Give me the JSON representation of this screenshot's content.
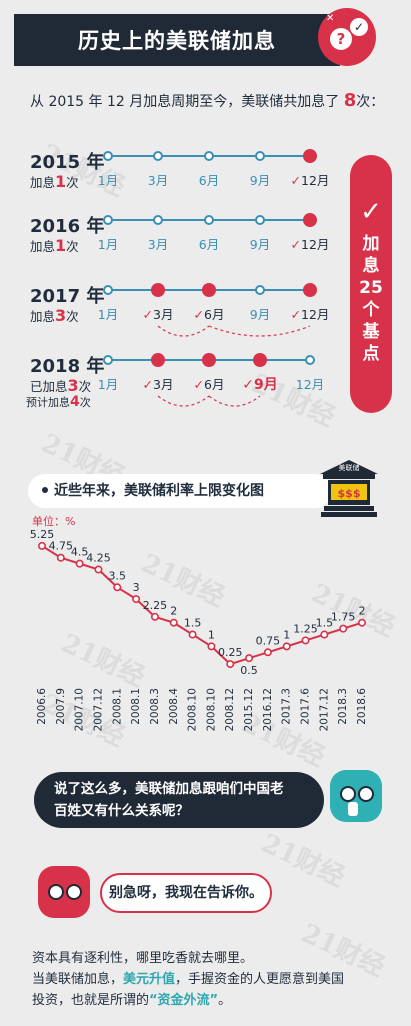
{
  "header": {
    "title": "历史上的美联储加息"
  },
  "intro": {
    "prefix": "从 2015 年 12 月加息周期至今，美联储共加息了",
    "count": "8",
    "suffix": "次："
  },
  "timeline": [
    {
      "year": "2015 年",
      "sub_pre": "加息",
      "sub_num": "1",
      "sub_post": "次",
      "months": [
        {
          "label": "1月",
          "state": "none"
        },
        {
          "label": "3月",
          "state": "none"
        },
        {
          "label": "6月",
          "state": "none"
        },
        {
          "label": "9月",
          "state": "none"
        },
        {
          "label": "12月",
          "state": "hit"
        }
      ]
    },
    {
      "year": "2016 年",
      "sub_pre": "加息",
      "sub_num": "1",
      "sub_post": "次",
      "months": [
        {
          "label": "1月",
          "state": "none"
        },
        {
          "label": "3月",
          "state": "none"
        },
        {
          "label": "6月",
          "state": "none"
        },
        {
          "label": "9月",
          "state": "none"
        },
        {
          "label": "12月",
          "state": "hit"
        }
      ]
    },
    {
      "year": "2017 年",
      "sub_pre": "加息",
      "sub_num": "3",
      "sub_post": "次",
      "months": [
        {
          "label": "1月",
          "state": "none"
        },
        {
          "label": "3月",
          "state": "hit"
        },
        {
          "label": "6月",
          "state": "hit"
        },
        {
          "label": "9月",
          "state": "none"
        },
        {
          "label": "12月",
          "state": "hit"
        }
      ]
    },
    {
      "year": "2018 年",
      "sub_pre": "已加息",
      "sub_num": "3",
      "sub_post": "次",
      "sub2_pre": "预计加息",
      "sub2_num": "4",
      "sub2_post": "次",
      "months": [
        {
          "label": "1月",
          "state": "none"
        },
        {
          "label": "3月",
          "state": "hit"
        },
        {
          "label": "6月",
          "state": "hit"
        },
        {
          "label": "9月",
          "state": "pending"
        },
        {
          "label": "12月",
          "state": "none"
        }
      ]
    }
  ],
  "total_badge": {
    "check": "✓",
    "text": [
      "加",
      "息",
      "25",
      "个",
      "基",
      "点"
    ]
  },
  "chart_heading": "近些年来，美联储利率上限变化图",
  "bank_label": "美联储",
  "bank_money": "$$$",
  "chart_data": {
    "type": "line",
    "title": "近些年来，美联储利率上限变化图",
    "unit_label": "单位：%",
    "categories": [
      "2006.6",
      "2007.9",
      "2007.10",
      "2007.12",
      "2008.1",
      "2008.1",
      "2008.3",
      "2008.4",
      "2008.10",
      "2008.10",
      "2008.12",
      "2015.12",
      "2016.12",
      "2017.3",
      "2017.6",
      "2017.12",
      "2018.3",
      "2018.6"
    ],
    "values": [
      5.25,
      4.75,
      4.5,
      4.25,
      3.5,
      3,
      2.25,
      2,
      1.5,
      1,
      0.25,
      0.5,
      0.75,
      1,
      1.25,
      1.5,
      1.75,
      2
    ],
    "labels": [
      "5.25",
      "4.75",
      "4.5",
      "4.25",
      "3.5",
      "3",
      "2.25",
      "2",
      "1.5",
      "1",
      "0.25",
      "0.5",
      "0.75",
      "1",
      "1.25",
      "1.5",
      "1.75",
      "2"
    ],
    "ylim": [
      0,
      5.5
    ],
    "color": "#d8324a",
    "grid": false
  },
  "dialog": {
    "question": [
      "说了这么多，美联储加息跟咱们中国老",
      "百姓又有什么关系呢？"
    ],
    "answer": "别急呀，我现在告诉你。"
  },
  "paragraph": {
    "line1": "资本具有逐利性，哪里吃香就去哪里。",
    "line2_pre": "当美联储加息，",
    "line2_hl": "美元升值",
    "line2_post": "，手握资金的人更愿意到美国",
    "line3_pre": "投资，也就是所谓的",
    "line3_hl": "“资金外流”",
    "line3_post": "。"
  },
  "watermark": "21财经",
  "colors": {
    "accent": "#d8324a",
    "dark": "#1f2a36",
    "teal": "#2fb0b4",
    "line_blue": "#3a8fb5"
  }
}
